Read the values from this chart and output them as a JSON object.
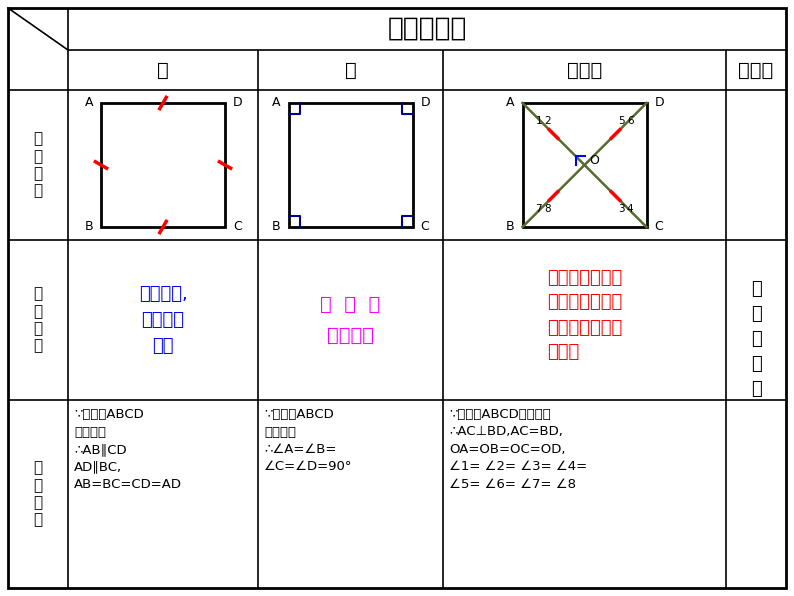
{
  "title": "正方形性质",
  "col_headers": [
    "边",
    "角",
    "对角线",
    "对称性"
  ],
  "row_headers": [
    "图\n形\n语\n言",
    "文\n字\n语\n言",
    "符\n号\n语\n言"
  ],
  "text_blue": "#0000FF",
  "text_magenta": "#FF00FF",
  "text_red": "#FF0000",
  "text_black": "#000000",
  "diag_color": "#808080",
  "tick_color": "#FF0000",
  "right_angle_color": "#0000CD",
  "wenzi_col1": "对边平行,\n四条边都\n相等",
  "wenzi_col2": "四  个  角\n都是直角",
  "wenzi_col3": "对角线互相垂直\n平分且相等，每\n条对角线平分一\n组对角",
  "fuhao_col1": "∵四边形ABCD\n是正方形\n∴AB∥CD\nAD∥BC,\nAB=BC=CD=AD",
  "fuhao_col2": "∵四边形ABCD\n是正方形\n∴∠A=∠B=\n∠C=∠D=90°",
  "fuhao_col3": "∵四边形ABCD是正方形\n∴AC⊥BD,AC=BD,\nOA=OB=OC=OD,\n∠1= ∠2= ∠3= ∠4=\n∠5= ∠6= ∠7= ∠8",
  "symmetry_text": "轴\n对\n称\n图\n形"
}
